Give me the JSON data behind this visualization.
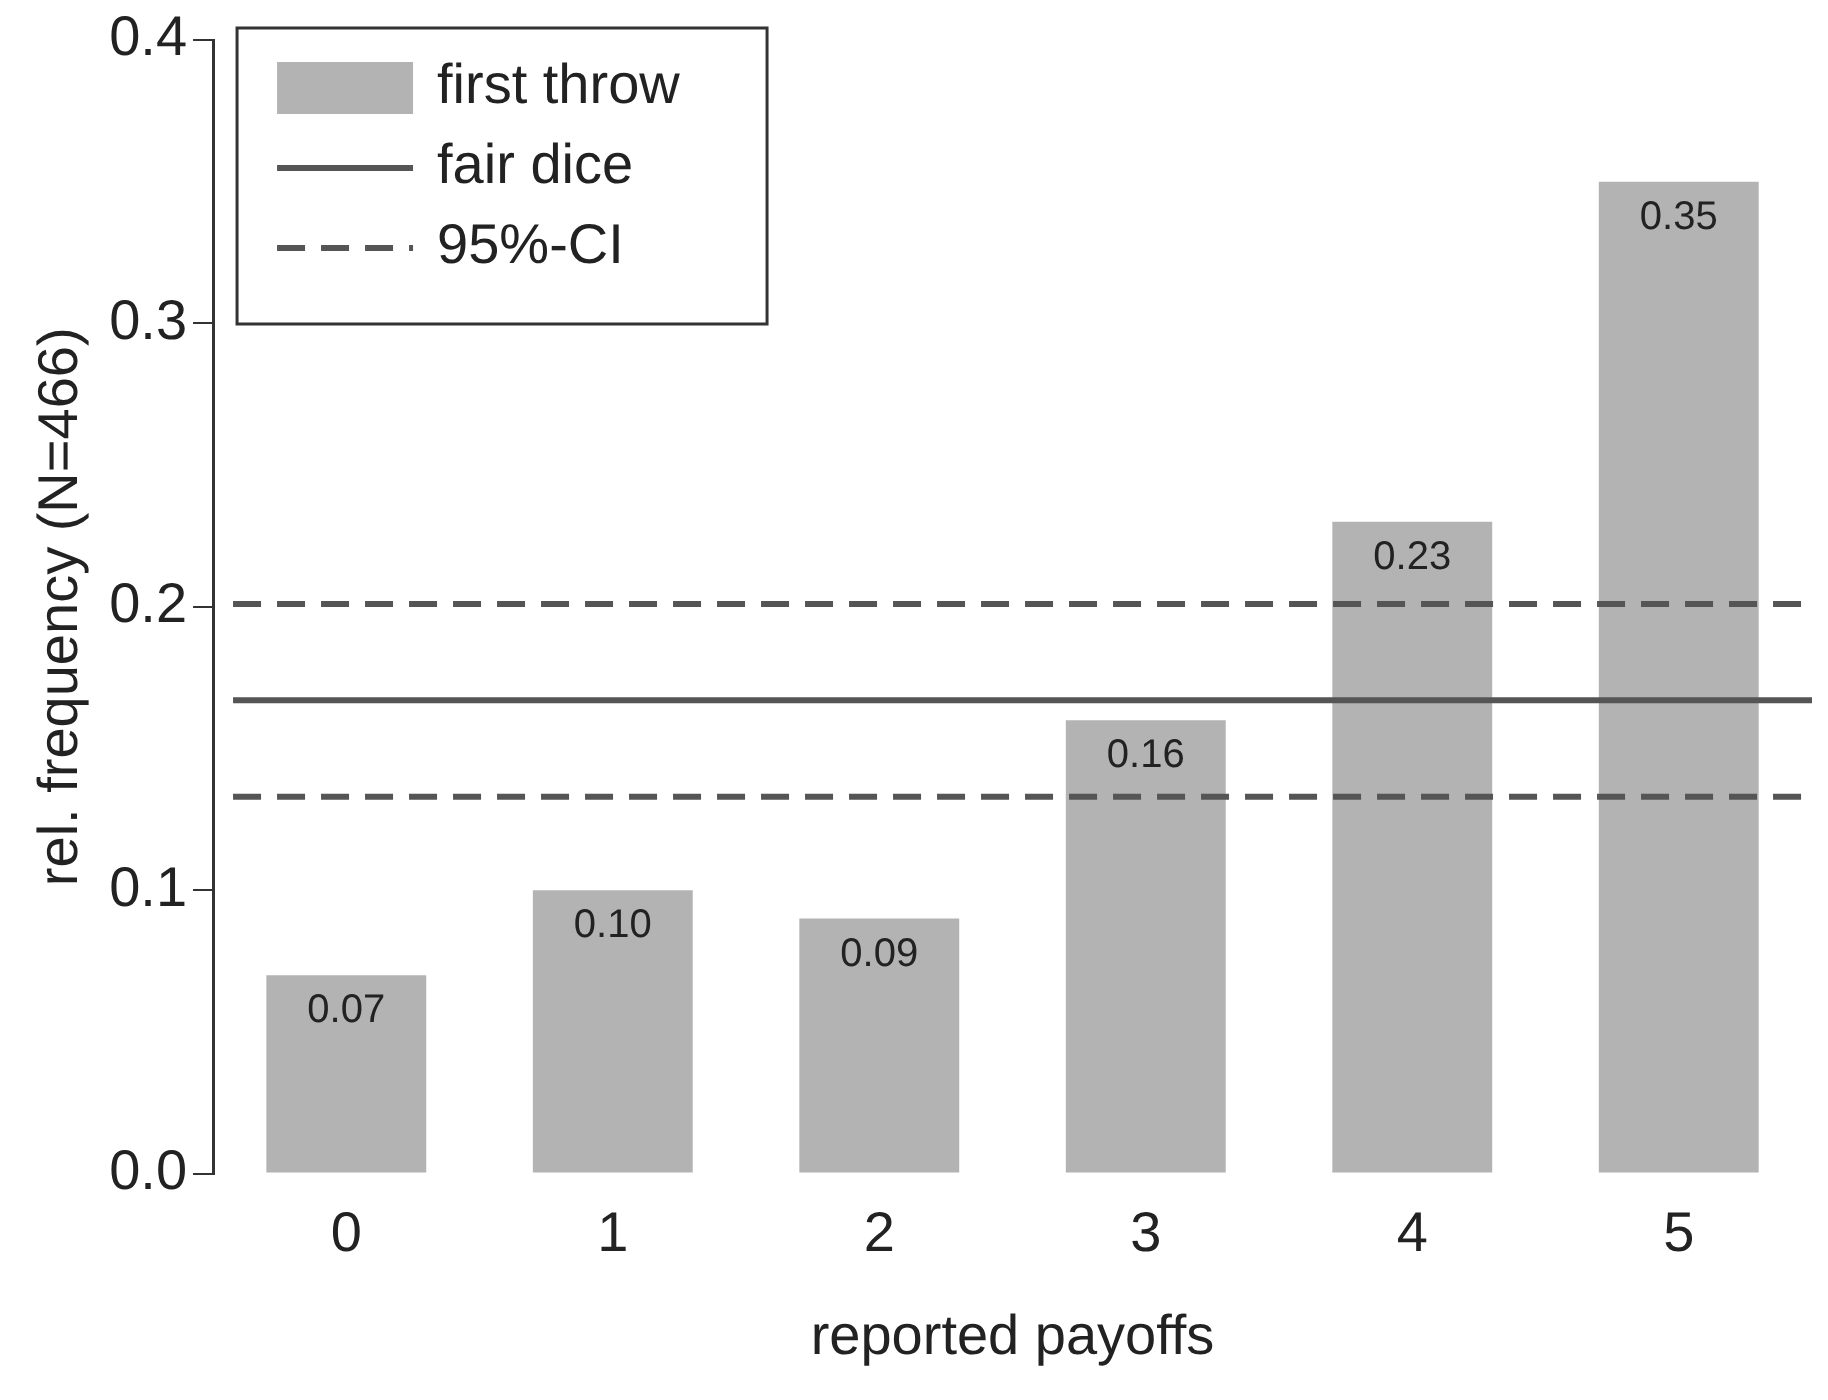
{
  "chart_data": {
    "type": "bar",
    "xlabel": "reported payoffs",
    "ylabel": "rel. frequency (N=466)",
    "categories": [
      "0",
      "1",
      "2",
      "3",
      "4",
      "5"
    ],
    "series": [
      {
        "name": "first throw",
        "color": "#b3b3b3",
        "values": [
          0.07,
          0.1,
          0.09,
          0.16,
          0.23,
          0.35
        ],
        "value_labels": [
          "0.07",
          "0.10",
          "0.09",
          "0.16",
          "0.23",
          "0.35"
        ]
      }
    ],
    "ylim": [
      0,
      0.4
    ],
    "yticks": [
      {
        "value": 0,
        "label": "0.0"
      },
      {
        "value": 0.1,
        "label": "0.1"
      },
      {
        "value": 0.2,
        "label": "0.2"
      },
      {
        "value": 0.3,
        "label": "0.3"
      },
      {
        "value": 0.4,
        "label": "0.4"
      }
    ],
    "ref_lines": [
      {
        "axis": "y",
        "value": 0.167,
        "label": "fair dice",
        "color": "#555555",
        "line_style": "solid"
      },
      {
        "axis": "y",
        "value": 0.201,
        "label": "95%-CI",
        "color": "#555555",
        "line_style": "dashed"
      },
      {
        "axis": "y",
        "value": 0.133,
        "label": null,
        "color": "#555555",
        "line_style": "dashed"
      }
    ],
    "grid": false,
    "legend": "top left"
  }
}
